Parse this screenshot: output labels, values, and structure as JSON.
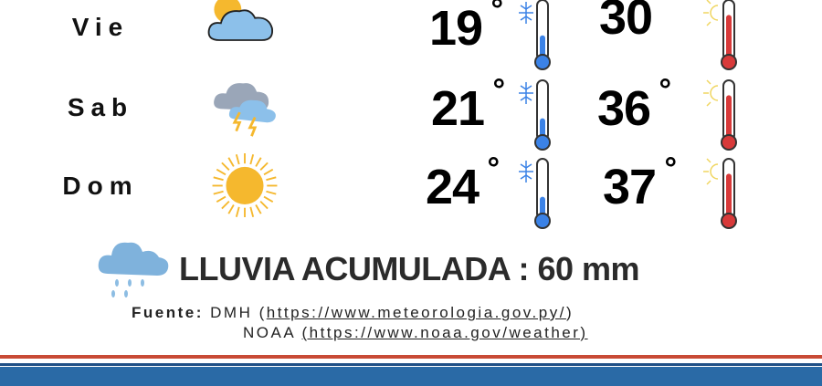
{
  "forecast": [
    {
      "day": "Vie",
      "icon": "partly-cloudy-icon",
      "min": "19",
      "max": "30",
      "min_fill": 0.45,
      "max_fill": 0.85
    },
    {
      "day": "Sab",
      "icon": "thunderstorm-icon",
      "min": "21",
      "max": "36",
      "min_fill": 0.4,
      "max_fill": 0.85
    },
    {
      "day": "Dom",
      "icon": "sun-icon",
      "min": "24",
      "max": "37",
      "min_fill": 0.4,
      "max_fill": 0.85
    }
  ],
  "rain": {
    "label": "LLUVIA ACUMULADA : 60 mm",
    "icon": "rain-cloud-icon"
  },
  "sources": {
    "label": "Fuente:",
    "dmh_name": "DMH (",
    "dmh_url": "https://www.meteorologia.gov.py/",
    "dmh_close": ")",
    "noaa_name": "NOAA ",
    "noaa_url": "(https://www.noaa.gov/weather)"
  },
  "colors": {
    "cold": "#3b82e6",
    "hot": "#d83a3a",
    "banner_blue": "#2a6aa6",
    "banner_red": "#c84a35"
  }
}
